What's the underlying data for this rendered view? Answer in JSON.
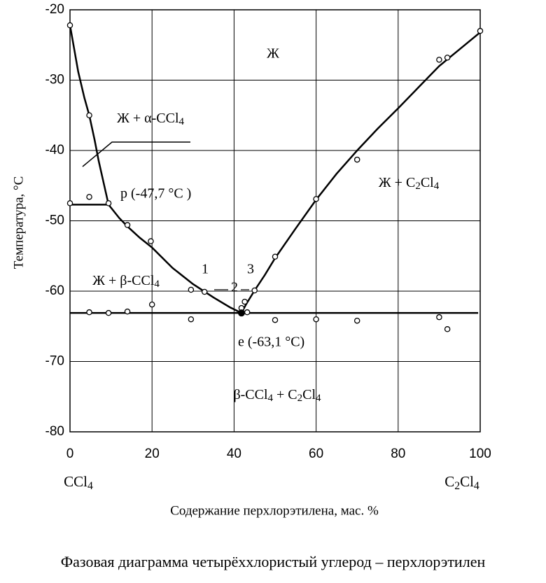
{
  "chart_data": {
    "type": "scatter",
    "xlabel": "Содержание перхлорэтилена, мас. %",
    "ylabel": "Температура, °C",
    "caption": "Фазовая диаграмма четырёххлористый углерод – перхлорэтилен",
    "x_end_labels": [
      "CCl4",
      "C2Cl4"
    ],
    "xlim": [
      0,
      100
    ],
    "xticks": [
      0,
      20,
      40,
      60,
      80,
      100
    ],
    "ylim": [
      -80,
      -20
    ],
    "yticks": [
      -20,
      -30,
      -40,
      -50,
      -60,
      -70,
      -80
    ],
    "grid": true,
    "color": "#000000",
    "points": {
      "x": [
        0,
        4.7,
        4.7,
        0,
        9.4,
        14,
        19.7,
        29.5,
        32.8,
        41.8,
        42.6,
        43.2,
        45,
        50,
        60,
        70,
        90,
        92,
        100,
        4.7,
        9.4,
        14,
        20,
        29.5,
        50,
        60,
        70,
        90,
        92
      ],
      "y": [
        -22.2,
        -35,
        -46.6,
        -47.5,
        -47.5,
        -50.6,
        -52.9,
        -59.8,
        -60.1,
        -62.4,
        -61.5,
        -63,
        -59.9,
        -55.1,
        -46.9,
        -41.3,
        -27.1,
        -26.8,
        -23,
        -63,
        -63.1,
        -62.9,
        -61.9,
        -64,
        -64.1,
        -64,
        -64.2,
        -63.7,
        -65.4
      ]
    },
    "eutectic": {
      "x": 41.8,
      "y": -63.1
    },
    "curves": [
      {
        "x": [
          0,
          1,
          2,
          3.5,
          4.7,
          6,
          7,
          8.2,
          9.4
        ],
        "y": [
          -22.2,
          -25.5,
          -28.8,
          -32.5,
          -35,
          -38.5,
          -41.5,
          -44.6,
          -47.7
        ]
      },
      {
        "x": [
          9.4,
          12,
          14,
          17,
          20,
          25,
          30,
          35,
          39,
          41.8
        ],
        "y": [
          -47.7,
          -49.6,
          -50.8,
          -52.4,
          -53.8,
          -56.7,
          -59,
          -60.9,
          -62.3,
          -63.1
        ]
      },
      {
        "x": [
          41.8,
          43,
          45,
          47.5,
          50,
          55,
          60,
          65,
          70,
          75,
          80,
          85,
          90,
          95,
          100
        ],
        "y": [
          -63.1,
          -61.8,
          -59.9,
          -57.7,
          -55.3,
          -51.1,
          -47,
          -43.3,
          -40,
          -36.9,
          -34,
          -31,
          -28,
          -25.6,
          -23.2
        ]
      },
      {
        "x": [
          0,
          9.4
        ],
        "y": [
          -47.7,
          -47.7
        ]
      },
      {
        "x": [
          0,
          99.5
        ],
        "y": [
          -63.1,
          -63.1
        ]
      }
    ],
    "annotations": [
      "Ж",
      "Ж + α-CCl4",
      "p (-47,7 °C )",
      "Ж + C2Cl4",
      "Ж + β-CCl4",
      "1",
      "2",
      "3",
      "e (-63,1 °C)",
      "β-CCl4 + C2Cl4"
    ]
  }
}
